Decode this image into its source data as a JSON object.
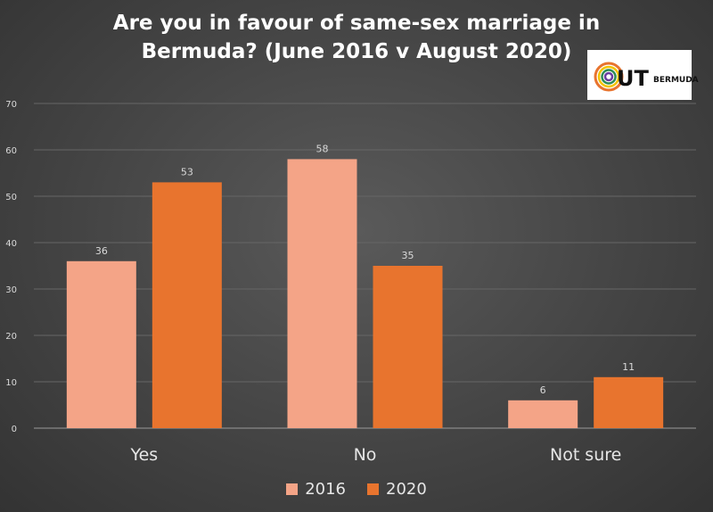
{
  "chart_data": {
    "type": "bar",
    "title_line1": "Are you in favour of same-sex marriage in",
    "title_line2": "Bermuda? (June 2016 v August 2020)",
    "categories": [
      "Yes",
      "No",
      "Not sure"
    ],
    "series": [
      {
        "name": "2016",
        "values": [
          36,
          58,
          6
        ],
        "color": "#f4a487"
      },
      {
        "name": "2020",
        "values": [
          53,
          35,
          11
        ],
        "color": "#e8742e"
      }
    ],
    "ylim": [
      0,
      70
    ],
    "yticks": [
      "0",
      "10",
      "20",
      "30",
      "40",
      "50",
      "60",
      "70"
    ],
    "grid": true,
    "legend_position": "bottom"
  },
  "logo": {
    "text": "BERMUDA",
    "icon": "out-bermuda-logo"
  }
}
